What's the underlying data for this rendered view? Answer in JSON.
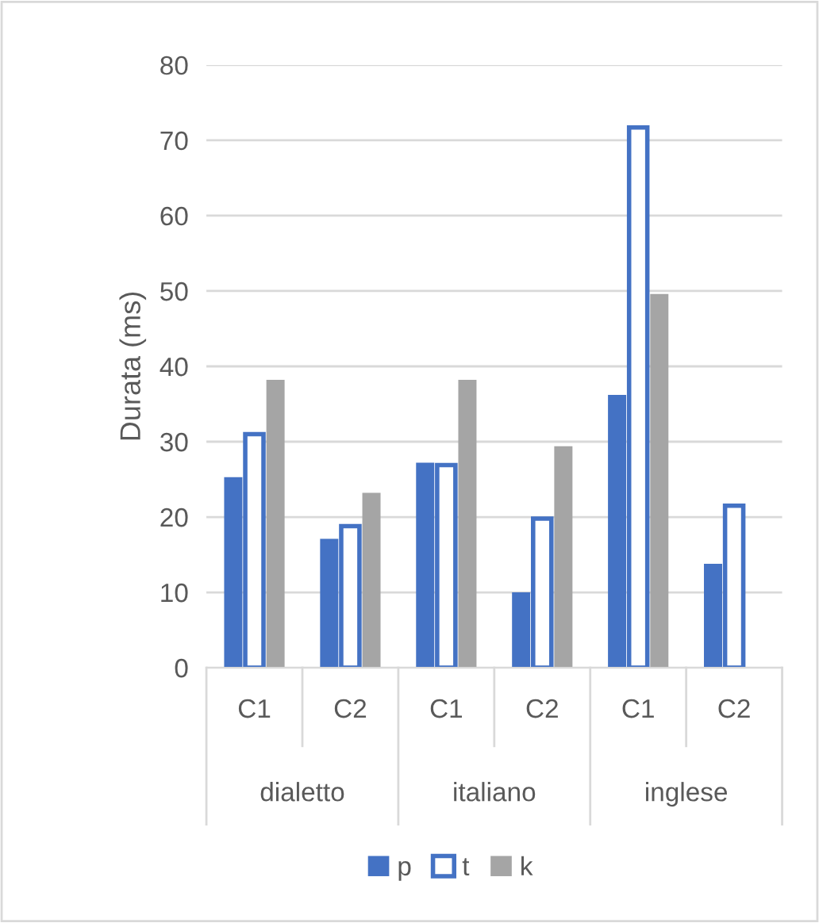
{
  "chart_data": {
    "type": "bar",
    "ylabel": "Durata (ms)",
    "categories": [
      "C1",
      "C2",
      "C1",
      "C2",
      "C1",
      "C2"
    ],
    "annotations": [
      "dialetto",
      "italiano",
      "inglese"
    ],
    "series": [
      {
        "name": "p",
        "color": "#4472c4",
        "values": [
          25.3,
          17.1,
          27.2,
          10.0,
          36.2,
          13.8
        ]
      },
      {
        "name": "t",
        "color": "#4472c4",
        "values": [
          31.0,
          18.8,
          26.9,
          19.8,
          71.7,
          21.5
        ]
      },
      {
        "name": "k",
        "color": "#a5a5a5",
        "values": [
          38.2,
          23.2,
          38.2,
          29.4,
          49.6,
          null
        ]
      }
    ],
    "ylim": [
      0,
      80
    ],
    "yticks": [
      0,
      10,
      20,
      30,
      40,
      50,
      60,
      70,
      80
    ],
    "grid": "y",
    "legend": "bottom"
  }
}
